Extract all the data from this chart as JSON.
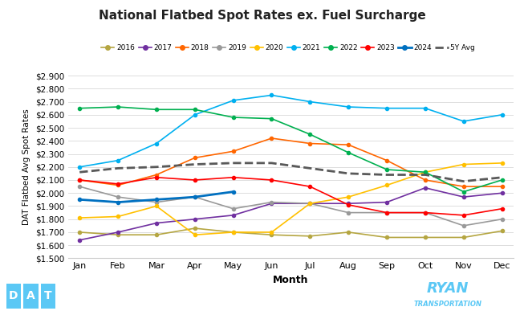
{
  "title": "National Flatbed Spot Rates ex. Fuel Surcharge",
  "xlabel": "Month",
  "ylabel": "DAT Flatbed Avg Spot Rates",
  "months": [
    "Jan",
    "Feb",
    "Mar",
    "Apr",
    "May",
    "Jun",
    "Jul",
    "Aug",
    "Sep",
    "Oct",
    "Nov",
    "Dec"
  ],
  "ylim": [
    1.5,
    2.9
  ],
  "yticks": [
    1.5,
    1.6,
    1.7,
    1.8,
    1.9,
    2.0,
    2.1,
    2.2,
    2.3,
    2.4,
    2.5,
    2.6,
    2.7,
    2.8,
    2.9
  ],
  "series": {
    "2016": {
      "color": "#b5a642",
      "linestyle": "-",
      "linewidth": 1.2,
      "marker": "o",
      "markersize": 3,
      "values": [
        1.7,
        1.68,
        1.68,
        1.73,
        1.7,
        1.68,
        1.67,
        1.7,
        1.66,
        1.66,
        1.66,
        1.71
      ]
    },
    "2017": {
      "color": "#7030a0",
      "linestyle": "-",
      "linewidth": 1.2,
      "marker": "o",
      "markersize": 3,
      "values": [
        1.64,
        1.7,
        1.77,
        1.8,
        1.83,
        1.92,
        1.92,
        1.92,
        1.93,
        2.04,
        1.97,
        2.0
      ]
    },
    "2018": {
      "color": "#ff6600",
      "linestyle": "-",
      "linewidth": 1.2,
      "marker": "o",
      "markersize": 3,
      "values": [
        2.1,
        2.06,
        2.14,
        2.27,
        2.32,
        2.42,
        2.38,
        2.37,
        2.25,
        2.1,
        2.05,
        2.05
      ]
    },
    "2019": {
      "color": "#999999",
      "linestyle": "-",
      "linewidth": 1.2,
      "marker": "o",
      "markersize": 3,
      "values": [
        2.05,
        1.97,
        1.93,
        1.97,
        1.88,
        1.93,
        1.92,
        1.85,
        1.85,
        1.85,
        1.75,
        1.8
      ]
    },
    "2020": {
      "color": "#ffc000",
      "linestyle": "-",
      "linewidth": 1.2,
      "marker": "o",
      "markersize": 3,
      "values": [
        1.81,
        1.82,
        1.9,
        1.68,
        1.7,
        1.7,
        1.92,
        1.97,
        2.06,
        2.16,
        2.22,
        2.23
      ]
    },
    "2021": {
      "color": "#00b0f0",
      "linestyle": "-",
      "linewidth": 1.2,
      "marker": "o",
      "markersize": 3,
      "values": [
        2.2,
        2.25,
        2.38,
        2.6,
        2.71,
        2.75,
        2.7,
        2.66,
        2.65,
        2.65,
        2.55,
        2.6
      ]
    },
    "2022": {
      "color": "#00b050",
      "linestyle": "-",
      "linewidth": 1.2,
      "marker": "o",
      "markersize": 3,
      "values": [
        2.65,
        2.66,
        2.64,
        2.64,
        2.58,
        2.57,
        2.45,
        2.31,
        2.18,
        2.16,
        2.01,
        2.1
      ]
    },
    "2023": {
      "color": "#ff0000",
      "linestyle": "-",
      "linewidth": 1.2,
      "marker": "o",
      "markersize": 3,
      "values": [
        2.1,
        2.07,
        2.12,
        2.1,
        2.12,
        2.1,
        2.05,
        1.91,
        1.85,
        1.85,
        1.83,
        1.88
      ]
    },
    "2024": {
      "color": "#0070c0",
      "linestyle": "-",
      "linewidth": 2.0,
      "marker": "o",
      "markersize": 3,
      "values": [
        1.95,
        1.93,
        1.95,
        1.97,
        2.01,
        null,
        null,
        null,
        null,
        null,
        null,
        null
      ]
    },
    "5Y Avg": {
      "color": "#595959",
      "linestyle": "--",
      "linewidth": 2.0,
      "marker": null,
      "markersize": 0,
      "values": [
        2.16,
        2.19,
        2.2,
        2.22,
        2.23,
        2.23,
        2.19,
        2.15,
        2.14,
        2.14,
        2.09,
        2.12
      ]
    }
  },
  "legend_order": [
    "2016",
    "2017",
    "2018",
    "2019",
    "2020",
    "2021",
    "2022",
    "2023",
    "2024",
    "5Y Avg"
  ],
  "background_color": "#ffffff",
  "grid_color": "#d8d8d8",
  "dat_logo_color": "#5bc8f5",
  "ryan_logo_color": "#5bc8f5"
}
